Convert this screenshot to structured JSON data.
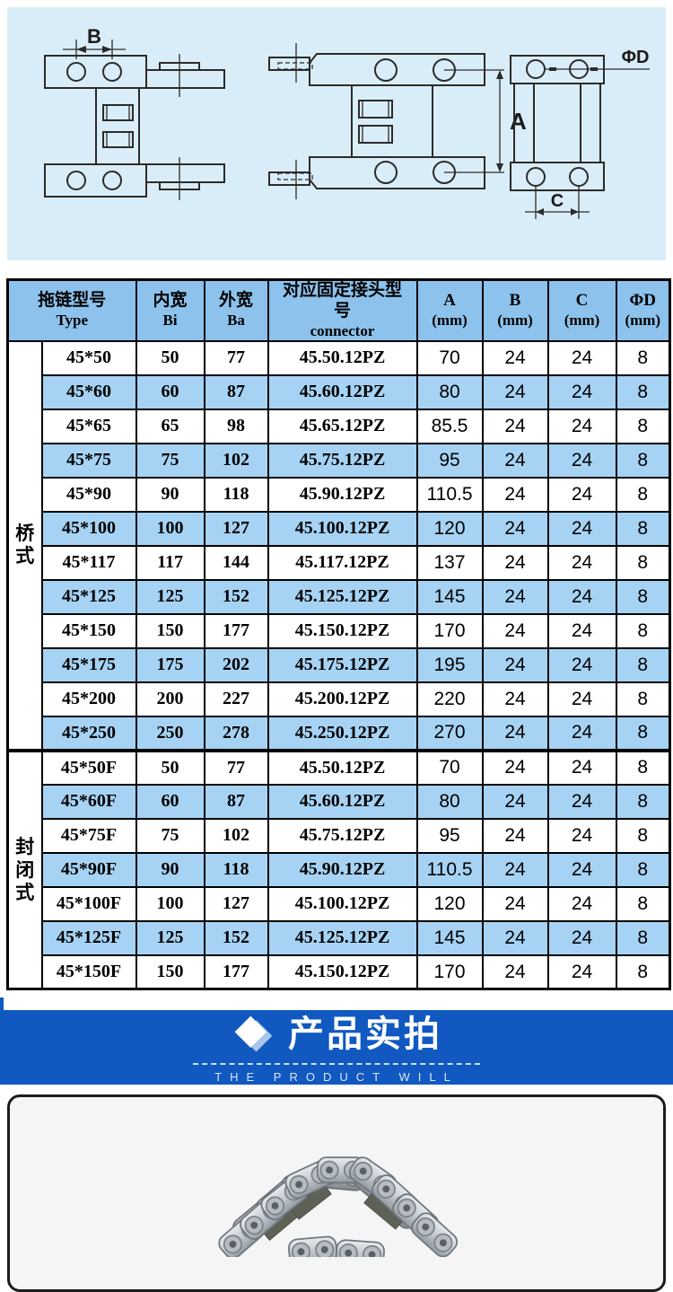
{
  "diagram": {
    "labels": {
      "b": "B",
      "a": "A",
      "c": "C",
      "d": "ΦD"
    }
  },
  "table": {
    "columns": {
      "type_cn": "拖链型号",
      "type_en": "Type",
      "inner_cn": "内宽",
      "inner_en": "Bi",
      "outer_cn": "外宽",
      "outer_en": "Ba",
      "connector_cn": "对应固定接头型号",
      "connector_en": "connector",
      "a_cn": "A",
      "a_unit": "(mm)",
      "b_cn": "B",
      "b_unit": "(mm)",
      "c_cn": "C",
      "c_unit": "(mm)",
      "d_cn": "ΦD",
      "d_unit": "(mm)"
    },
    "groups": [
      {
        "label": "桥式",
        "rows": [
          [
            "45*50",
            "50",
            "77",
            "45.50.12PZ",
            "70",
            "24",
            "24",
            "8"
          ],
          [
            "45*60",
            "60",
            "87",
            "45.60.12PZ",
            "80",
            "24",
            "24",
            "8"
          ],
          [
            "45*65",
            "65",
            "98",
            "45.65.12PZ",
            "85.5",
            "24",
            "24",
            "8"
          ],
          [
            "45*75",
            "75",
            "102",
            "45.75.12PZ",
            "95",
            "24",
            "24",
            "8"
          ],
          [
            "45*90",
            "90",
            "118",
            "45.90.12PZ",
            "110.5",
            "24",
            "24",
            "8"
          ],
          [
            "45*100",
            "100",
            "127",
            "45.100.12PZ",
            "120",
            "24",
            "24",
            "8"
          ],
          [
            "45*117",
            "117",
            "144",
            "45.117.12PZ",
            "137",
            "24",
            "24",
            "8"
          ],
          [
            "45*125",
            "125",
            "152",
            "45.125.12PZ",
            "145",
            "24",
            "24",
            "8"
          ],
          [
            "45*150",
            "150",
            "177",
            "45.150.12PZ",
            "170",
            "24",
            "24",
            "8"
          ],
          [
            "45*175",
            "175",
            "202",
            "45.175.12PZ",
            "195",
            "24",
            "24",
            "8"
          ],
          [
            "45*200",
            "200",
            "227",
            "45.200.12PZ",
            "220",
            "24",
            "24",
            "8"
          ],
          [
            "45*250",
            "250",
            "278",
            "45.250.12PZ",
            "270",
            "24",
            "24",
            "8"
          ]
        ]
      },
      {
        "label": "封闭式",
        "rows": [
          [
            "45*50F",
            "50",
            "77",
            "45.50.12PZ",
            "70",
            "24",
            "24",
            "8"
          ],
          [
            "45*60F",
            "60",
            "87",
            "45.60.12PZ",
            "80",
            "24",
            "24",
            "8"
          ],
          [
            "45*75F",
            "75",
            "102",
            "45.75.12PZ",
            "95",
            "24",
            "24",
            "8"
          ],
          [
            "45*90F",
            "90",
            "118",
            "45.90.12PZ",
            "110.5",
            "24",
            "24",
            "8"
          ],
          [
            "45*100F",
            "100",
            "127",
            "45.100.12PZ",
            "120",
            "24",
            "24",
            "8"
          ],
          [
            "45*125F",
            "125",
            "152",
            "45.125.12PZ",
            "145",
            "24",
            "24",
            "8"
          ],
          [
            "45*150F",
            "150",
            "177",
            "45.150.12PZ",
            "170",
            "24",
            "24",
            "8"
          ]
        ]
      }
    ]
  },
  "banner": {
    "title": "产品实拍",
    "subtitle": "THE PRODUCT WILL",
    "icon": "diamond-icon"
  },
  "photo": {
    "label": "steel-drag-chain-photo"
  },
  "colors": {
    "diagram_bg": "#d9edf8",
    "header_bg": "#8cc2ec",
    "row_alt_bg": "#a6d3f4",
    "banner_bg": "#1159c1",
    "table_border": "#000000",
    "photo_bg": "#f5f5f5"
  }
}
